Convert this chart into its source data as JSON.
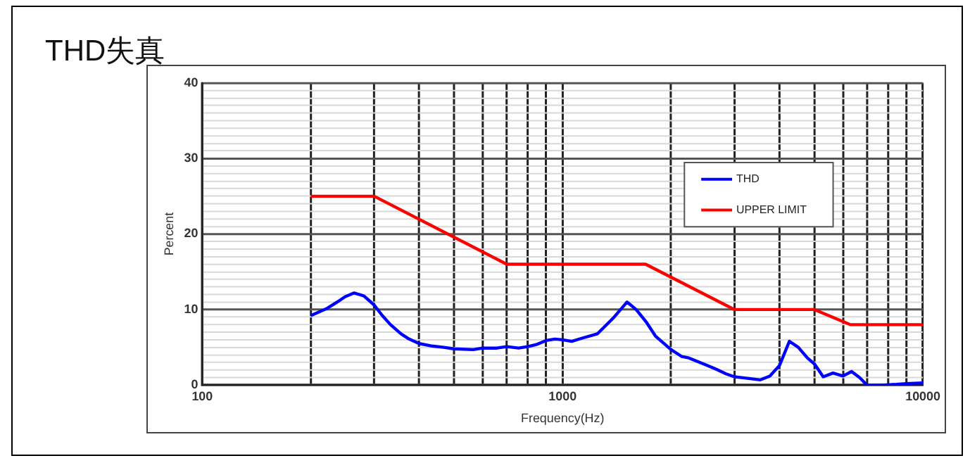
{
  "chart_data": {
    "type": "line",
    "title": "THD失真",
    "xlabel": "Frequency(Hz)",
    "ylabel": "Percent",
    "log": "x",
    "xlim": [
      100,
      10000
    ],
    "xticks": [
      100,
      {
        "value": 200,
        "label": null
      },
      {
        "value": 300,
        "label": null
      },
      {
        "value": 400,
        "label": null
      },
      {
        "value": 500,
        "label": null
      },
      {
        "value": 600,
        "label": null
      },
      {
        "value": 700,
        "label": null
      },
      {
        "value": 800,
        "label": null
      },
      {
        "value": 900,
        "label": null
      },
      1000,
      {
        "value": 2000,
        "label": null
      },
      {
        "value": 3000,
        "label": null
      },
      {
        "value": 4000,
        "label": null
      },
      {
        "value": 5000,
        "label": null
      },
      {
        "value": 6000,
        "label": null
      },
      {
        "value": 7000,
        "label": null
      },
      {
        "value": 8000,
        "label": null
      },
      {
        "value": 9000,
        "label": null
      },
      10000
    ],
    "ylim": [
      0,
      40
    ],
    "yticks": [
      0,
      {
        "value": 1,
        "label": null
      },
      {
        "value": 2,
        "label": null
      },
      {
        "value": 3,
        "label": null
      },
      {
        "value": 4,
        "label": null
      },
      {
        "value": 5,
        "label": null
      },
      {
        "value": 6,
        "label": null
      },
      {
        "value": 7,
        "label": null
      },
      {
        "value": 8,
        "label": null
      },
      {
        "value": 9,
        "label": null
      },
      10,
      {
        "value": 11,
        "label": null
      },
      {
        "value": 12,
        "label": null
      },
      {
        "value": 13,
        "label": null
      },
      {
        "value": 14,
        "label": null
      },
      {
        "value": 15,
        "label": null
      },
      {
        "value": 16,
        "label": null
      },
      {
        "value": 17,
        "label": null
      },
      {
        "value": 18,
        "label": null
      },
      {
        "value": 19,
        "label": null
      },
      20,
      {
        "value": 21,
        "label": null
      },
      {
        "value": 22,
        "label": null
      },
      {
        "value": 23,
        "label": null
      },
      {
        "value": 24,
        "label": null
      },
      {
        "value": 25,
        "label": null
      },
      {
        "value": 26,
        "label": null
      },
      {
        "value": 27,
        "label": null
      },
      {
        "value": 28,
        "label": null
      },
      {
        "value": 29,
        "label": null
      },
      30,
      {
        "value": 31,
        "label": null
      },
      {
        "value": 32,
        "label": null
      },
      {
        "value": 33,
        "label": null
      },
      {
        "value": 34,
        "label": null
      },
      {
        "value": 35,
        "label": null
      },
      {
        "value": 36,
        "label": null
      },
      {
        "value": 37,
        "label": null
      },
      {
        "value": 38,
        "label": null
      },
      {
        "value": 39,
        "label": null
      },
      40
    ],
    "grid": true,
    "legend": "top right",
    "marker": "none",
    "line_style": "solid",
    "series": [
      {
        "name": "THD",
        "color": "#0000ff",
        "x": [
          200,
          221,
          237,
          249,
          264,
          281,
          300,
          316,
          333,
          356,
          375,
          400,
          430,
          468,
          500,
          565,
          600,
          657,
          700,
          755,
          800,
          850,
          900,
          952,
          1000,
          1060,
          1130,
          1250,
          1390,
          1510,
          1600,
          1710,
          1810,
          2000,
          2140,
          2240,
          2490,
          2670,
          2840,
          3000,
          3140,
          3540,
          3760,
          4000,
          4260,
          4510,
          4780,
          5000,
          5290,
          5630,
          6000,
          6340,
          6670,
          7000,
          7660,
          8430,
          9000,
          10000
        ],
        "values": [
          9.2,
          10.1,
          11.0,
          11.7,
          12.2,
          11.8,
          10.6,
          9.2,
          8.0,
          6.8,
          6.1,
          5.5,
          5.2,
          5.0,
          4.8,
          4.7,
          4.9,
          4.9,
          5.1,
          4.9,
          5.1,
          5.4,
          5.9,
          6.1,
          6.0,
          5.8,
          6.2,
          6.8,
          9.0,
          11.0,
          10.0,
          8.3,
          6.5,
          4.7,
          3.8,
          3.6,
          2.7,
          2.1,
          1.5,
          1.1,
          1.0,
          0.7,
          1.2,
          2.6,
          5.8,
          5.0,
          3.6,
          2.8,
          1.1,
          1.6,
          1.2,
          1.8,
          1.0,
          0.0,
          0.0,
          0.1,
          0.2,
          0.3
        ]
      },
      {
        "name": "UPPER LIMIT",
        "color": "#ff0000",
        "x": [
          200,
          300,
          700,
          1700,
          3000,
          5000,
          6300,
          10000
        ],
        "values": [
          25,
          25,
          16,
          16,
          10,
          10,
          8,
          8
        ]
      }
    ]
  }
}
